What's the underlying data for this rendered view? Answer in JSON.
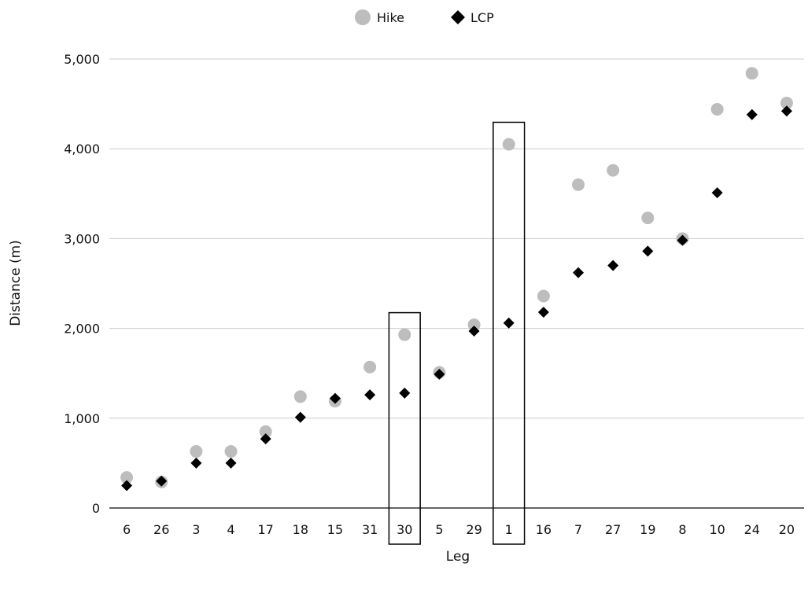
{
  "chart_data": {
    "type": "scatter",
    "xlabel": "Leg",
    "ylabel": "Distance (m)",
    "categories": [
      "6",
      "26",
      "3",
      "4",
      "17",
      "18",
      "15",
      "31",
      "30",
      "5",
      "29",
      "1",
      "16",
      "7",
      "27",
      "19",
      "8",
      "10",
      "24",
      "20"
    ],
    "series": [
      {
        "name": "Hike",
        "marker": "circle",
        "color": "#bdbdbd",
        "values": [
          340,
          290,
          630,
          630,
          850,
          1240,
          1190,
          1570,
          1930,
          1510,
          2040,
          4050,
          2360,
          3600,
          3760,
          3230,
          3000,
          4440,
          4840,
          4510
        ]
      },
      {
        "name": "LCP",
        "marker": "diamond",
        "color": "#000000",
        "values": [
          250,
          300,
          500,
          500,
          770,
          1010,
          1220,
          1260,
          1280,
          1490,
          1970,
          2060,
          2180,
          2620,
          2700,
          2860,
          2980,
          3510,
          4380,
          4420
        ]
      }
    ],
    "ylim": [
      0,
      5000
    ],
    "yticks": [
      0,
      1000,
      2000,
      3000,
      4000,
      5000
    ],
    "ytick_labels": [
      "0",
      "1,000",
      "2,000",
      "3,000",
      "4,000",
      "5,000"
    ],
    "grid": "horizontal",
    "legend_position": "top-center",
    "highlighted_categories": [
      "30",
      "1"
    ]
  }
}
